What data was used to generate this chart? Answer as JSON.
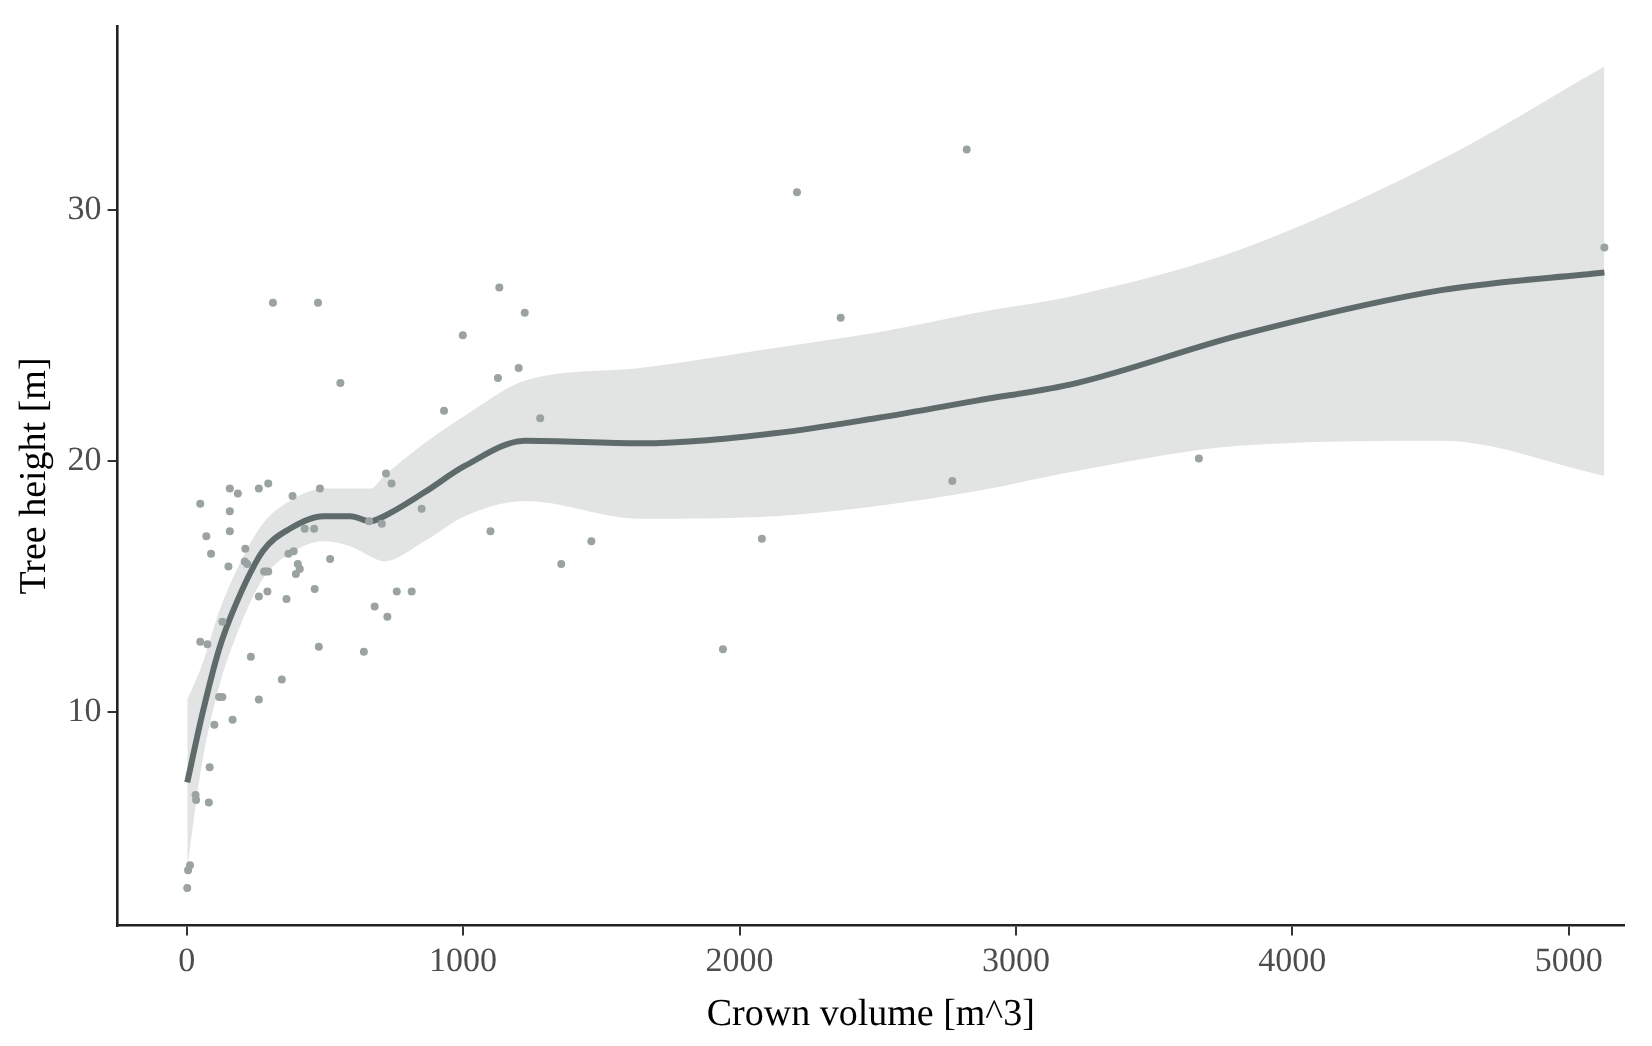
{
  "chart_data": {
    "type": "scatter",
    "xlabel": "Crown volume [m^3]",
    "ylabel": "Tree height [m]",
    "xlim": [
      -250,
      5200
    ],
    "xticks": [
      0,
      1000,
      2000,
      3000,
      4000,
      5000
    ],
    "ylim": [
      1.5,
      37.3
    ],
    "yticks": [
      10,
      20,
      30
    ],
    "grid": false,
    "legend": false,
    "line_style": "solid",
    "series": [
      {
        "color": "#9aa3a2",
        "marker": "circle",
        "x": [
          49,
          156,
          185,
          261,
          295,
          156,
          71,
          88,
          156,
          212,
          151,
          210,
          219,
          285,
          295,
          280,
          261,
          292,
          361,
          383,
          482,
          427,
          461,
          368,
          387,
          402,
          409,
          395,
          463,
          519,
          721,
          741,
          660,
          706,
          850,
          760,
          814,
          680,
          726,
          1099,
          1355,
          1464,
          49,
          75,
          129,
          232,
          478,
          641,
          344,
          261,
          117,
          129,
          100,
          166,
          83,
          32,
          34,
          80,
          12,
          5,
          2,
          312,
          475,
          556,
          999,
          1131,
          1223,
          1126,
          1201,
          931,
          1279,
          2366,
          2208,
          2081,
          1940,
          2770,
          2822,
          3662,
          5129
        ],
        "values": [
          18.3,
          18.9,
          18.7,
          18.9,
          19.1,
          18.0,
          17.0,
          16.3,
          17.2,
          16.5,
          15.8,
          16.0,
          15.9,
          15.6,
          15.6,
          15.6,
          14.6,
          14.8,
          14.5,
          18.6,
          18.9,
          17.3,
          17.3,
          16.3,
          16.4,
          15.9,
          15.7,
          15.5,
          14.9,
          16.1,
          19.5,
          19.1,
          17.6,
          17.5,
          18.1,
          14.8,
          14.8,
          14.2,
          13.8,
          17.2,
          15.9,
          16.8,
          12.8,
          12.7,
          13.6,
          12.2,
          12.6,
          12.4,
          11.3,
          10.5,
          10.6,
          10.6,
          9.5,
          9.7,
          7.8,
          6.7,
          6.5,
          6.4,
          3.9,
          3.7,
          3.0,
          26.3,
          26.3,
          23.1,
          25.0,
          26.9,
          25.9,
          23.3,
          23.7,
          22.0,
          21.7,
          25.7,
          30.7,
          16.9,
          12.5,
          19.2,
          32.4,
          20.1,
          28.5
        ]
      },
      {
        "type": "line",
        "color": "#5f6b6a",
        "marker": "none",
        "x": [
          2,
          56,
          117,
          178,
          275,
          373,
          495,
          592,
          665,
          714,
          860,
          1006,
          1225,
          1640,
          2127,
          2493,
          2858,
          3219,
          3808,
          4539,
          5129
        ],
        "values": [
          7.2,
          9.9,
          12.5,
          14.3,
          16.4,
          17.3,
          17.8,
          17.8,
          17.6,
          17.8,
          18.75,
          19.8,
          20.8,
          20.7,
          21.1,
          21.7,
          22.4,
          23.1,
          25.0,
          26.8,
          27.5
        ],
        "lower": [
          3.8,
          8.0,
          11.0,
          13.0,
          15.3,
          16.3,
          16.8,
          16.6,
          16.2,
          16.0,
          16.8,
          17.8,
          18.4,
          17.7,
          17.8,
          18.2,
          18.8,
          19.6,
          20.6,
          20.8,
          19.4
        ],
        "upper": [
          10.5,
          11.9,
          14.0,
          15.6,
          17.5,
          18.4,
          18.9,
          18.9,
          18.9,
          19.4,
          20.7,
          21.8,
          23.2,
          23.7,
          24.5,
          25.1,
          25.9,
          26.6,
          28.4,
          32.0,
          35.7
        ]
      }
    ]
  }
}
